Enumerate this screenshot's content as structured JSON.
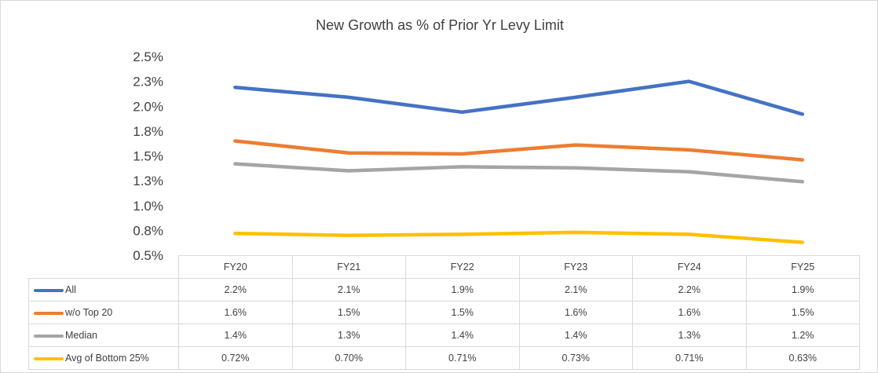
{
  "chart_data": {
    "type": "line",
    "title": "New Growth as % of Prior Yr Levy Limit",
    "categories": [
      "FY20",
      "FY21",
      "FY22",
      "FY23",
      "FY24",
      "FY25"
    ],
    "y_ticks": [
      "2.5%",
      "2.3%",
      "2.0%",
      "1.8%",
      "1.5%",
      "1.3%",
      "1.0%",
      "0.8%",
      "0.5%"
    ],
    "ylim": [
      0.5,
      2.5
    ],
    "grid": false,
    "legend": "data-table",
    "series": [
      {
        "name": "All",
        "color": "#4472c4",
        "values": [
          2.19,
          2.09,
          1.94,
          2.09,
          2.25,
          1.92
        ],
        "labels": [
          "2.2%",
          "2.1%",
          "1.9%",
          "2.1%",
          "2.2%",
          "1.9%"
        ]
      },
      {
        "name": "w/o Top 20",
        "color": "#ed7d31",
        "values": [
          1.65,
          1.53,
          1.52,
          1.61,
          1.56,
          1.46
        ],
        "labels": [
          "1.6%",
          "1.5%",
          "1.5%",
          "1.6%",
          "1.6%",
          "1.5%"
        ]
      },
      {
        "name": "Median",
        "color": "#a5a5a5",
        "values": [
          1.42,
          1.35,
          1.39,
          1.38,
          1.34,
          1.24
        ],
        "labels": [
          "1.4%",
          "1.3%",
          "1.4%",
          "1.4%",
          "1.3%",
          "1.2%"
        ]
      },
      {
        "name": "Avg of Bottom 25%",
        "color": "#ffc000",
        "values": [
          0.72,
          0.7,
          0.71,
          0.73,
          0.71,
          0.63
        ],
        "labels": [
          "0.72%",
          "0.70%",
          "0.71%",
          "0.73%",
          "0.71%",
          "0.63%"
        ]
      }
    ]
  }
}
